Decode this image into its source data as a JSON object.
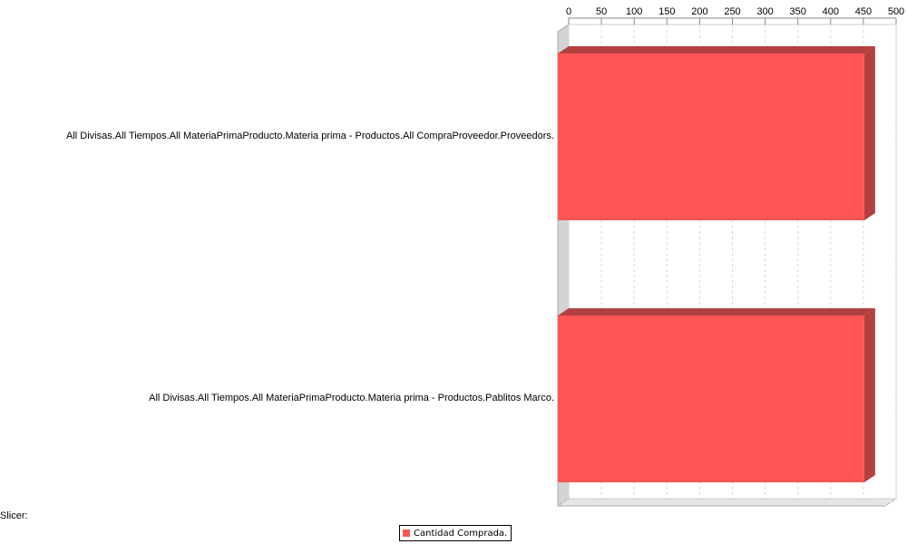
{
  "chart_data": {
    "type": "bar",
    "orientation": "horizontal",
    "three_d": true,
    "categories": [
      "All Divisas.All Tiempos.All MateriaPrimaProducto.Materia prima - Productos.All CompraProveedor.Proveedors.",
      "All Divisas.All Tiempos.All MateriaPrimaProducto.Materia prima - Productos.Pablitos Marco."
    ],
    "series": [
      {
        "name": "Cantidad Comprada.",
        "values": [
          468,
          468
        ]
      }
    ],
    "x_axis": {
      "position": "top",
      "range": [
        0,
        500
      ],
      "ticks": [
        "0",
        "50",
        "100",
        "150",
        "200",
        "250",
        "300",
        "350",
        "400",
        "450",
        "500"
      ],
      "gridlines": true
    },
    "legend": {
      "position": "bottom-center"
    },
    "colors": {
      "bar_front": "#ff5555",
      "bar_top": "#b34040",
      "bar_side": "#b34040",
      "wall": "#d4d4d4",
      "grid": "#d8d8d8"
    }
  },
  "slicer": {
    "label": "Slicer:"
  }
}
